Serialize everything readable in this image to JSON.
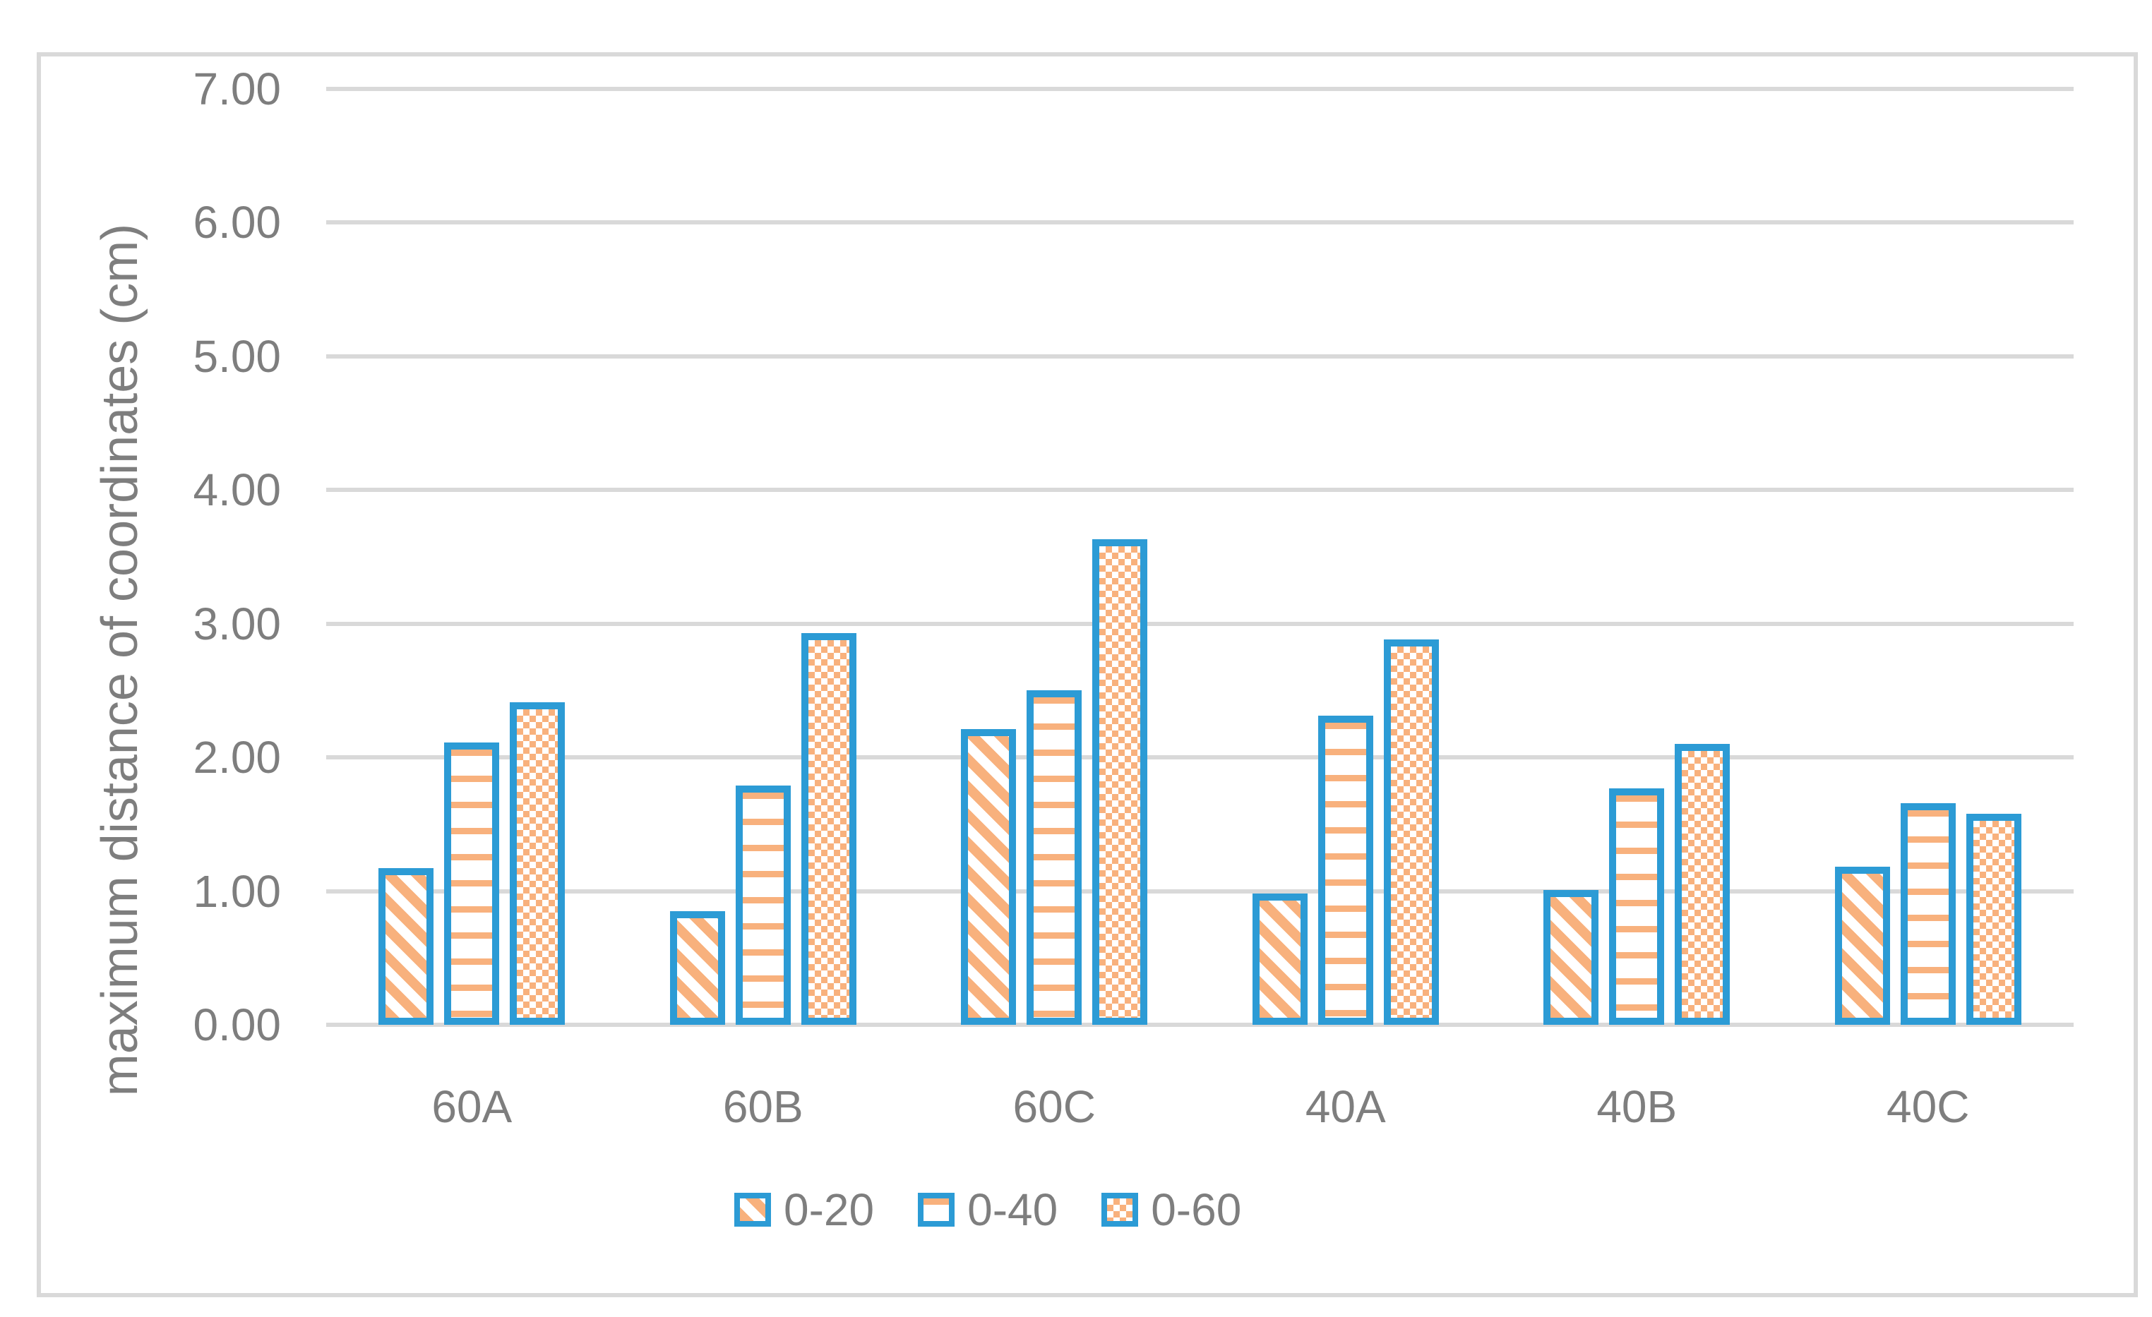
{
  "chart_data": {
    "type": "bar",
    "title": "",
    "xlabel": "",
    "ylabel": "maximum distance of coordinates (cm)",
    "categories": [
      "60A",
      "60B",
      "60C",
      "40A",
      "40B",
      "40C"
    ],
    "series": [
      {
        "name": "0-20",
        "pattern": "diagonal-stripes",
        "values": [
          1.17,
          0.85,
          2.21,
          0.98,
          1.01,
          1.18
        ]
      },
      {
        "name": "0-40",
        "pattern": "horizontal-lines",
        "values": [
          2.11,
          1.79,
          2.5,
          2.31,
          1.77,
          1.66
        ]
      },
      {
        "name": "0-60",
        "pattern": "dotted-diamond-checker",
        "values": [
          2.41,
          2.93,
          3.63,
          2.88,
          2.1,
          1.58
        ]
      }
    ],
    "ylim": [
      0,
      7
    ],
    "yticks": [
      "7.00",
      "6.00",
      "5.00",
      "4.00",
      "3.00",
      "2.00",
      "1.00",
      "0.00"
    ],
    "grid": true,
    "legend_position": "bottom"
  },
  "colors": {
    "bar_border_blue": "#2C9BD5",
    "pattern_orange": "#F8B17D",
    "gridline_grey": "#D9D9D9",
    "text_grey": "#7E7E7E",
    "background": "#FFFFFF"
  }
}
